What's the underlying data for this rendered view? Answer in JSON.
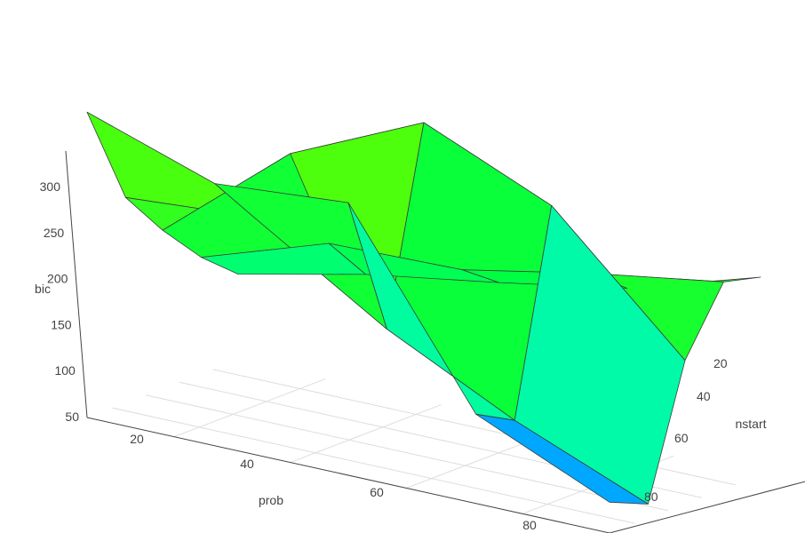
{
  "chart_data": {
    "type": "surface",
    "title": "",
    "x_axis": {
      "label": "prob",
      "ticks": [
        20,
        40,
        60,
        80
      ],
      "range": [
        5,
        95
      ]
    },
    "y_axis": {
      "label": "nstart",
      "ticks": [
        20,
        40,
        60,
        80
      ],
      "range": [
        5,
        95
      ]
    },
    "z_axis": {
      "label": "bic",
      "ticks": [
        50,
        100,
        150,
        200,
        250,
        300
      ],
      "range": [
        50,
        330
      ]
    },
    "prob": [
      5,
      27,
      50,
      72,
      95
    ],
    "nstart": [
      5,
      27,
      50,
      72,
      95
    ],
    "bic": [
      [
        150,
        170,
        195,
        220,
        280
      ],
      [
        175,
        205,
        280,
        220,
        240
      ],
      [
        190,
        200,
        320,
        150,
        240
      ],
      [
        205,
        215,
        265,
        100,
        110
      ],
      [
        235,
        225,
        160,
        60,
        70
      ]
    ],
    "colorscale": [
      "#0060ff",
      "#00e8ff",
      "#00ff90",
      "#00ff40",
      "#60ff00",
      "#a0ff00"
    ],
    "grid": true,
    "legend": "none"
  }
}
